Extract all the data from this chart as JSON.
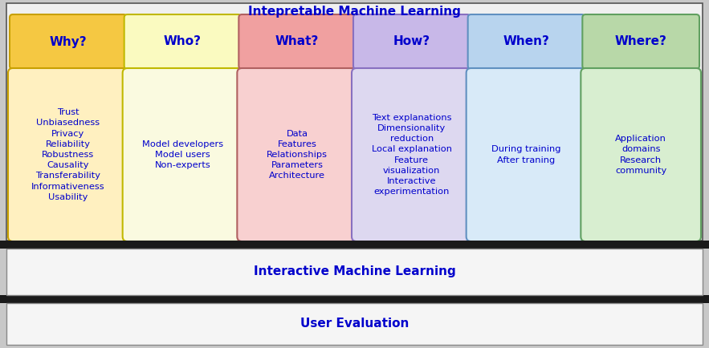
{
  "title_interpretable": "Intepretable Machine Learning",
  "title_interactive": "Interactive Machine Learning",
  "title_user_eval": "User Evaluation",
  "text_color": "#0000CC",
  "outer_bg": "#c8c8c8",
  "section_bg": "#f0f0f0",
  "section_border": "#555555",
  "bottom_box_bg": "#f5f5f5",
  "columns": [
    {
      "header": "Why?",
      "header_bg": "#F5C842",
      "header_border": "#C8A000",
      "body_bg": "#FFF0C0",
      "body_border": "#C8A000",
      "body_text": "Trust\nUnbiasedness\nPrivacy\nReliability\nRobustness\nCausality\nTransferability\nInformativeness\nUsability"
    },
    {
      "header": "Who?",
      "header_bg": "#FAFAC0",
      "header_border": "#C0B800",
      "body_bg": "#FAFAE0",
      "body_border": "#C0B800",
      "body_text": "Model developers\nModel users\nNon-experts"
    },
    {
      "header": "What?",
      "header_bg": "#F0A0A0",
      "header_border": "#B06060",
      "body_bg": "#F8D0D0",
      "body_border": "#B06060",
      "body_text": "Data\nFeatures\nRelationships\nParameters\nArchitecture"
    },
    {
      "header": "How?",
      "header_bg": "#C8B8E8",
      "header_border": "#8870C0",
      "body_bg": "#DDD8F0",
      "body_border": "#8870C0",
      "body_text": "Text explanations\nDimensionality\nreduction\nLocal explanation\nFeature\nvisualization\nInteractive\nexperimentation"
    },
    {
      "header": "When?",
      "header_bg": "#B8D4EE",
      "header_border": "#6090C0",
      "body_bg": "#D8EAF8",
      "body_border": "#6090C0",
      "body_text": "During training\nAfter traning"
    },
    {
      "header": "Where?",
      "header_bg": "#B8D8A8",
      "header_border": "#60A060",
      "body_bg": "#D8EED0",
      "body_border": "#60A060",
      "body_text": "Application\ndomains\nResearch\ncommunity"
    }
  ]
}
